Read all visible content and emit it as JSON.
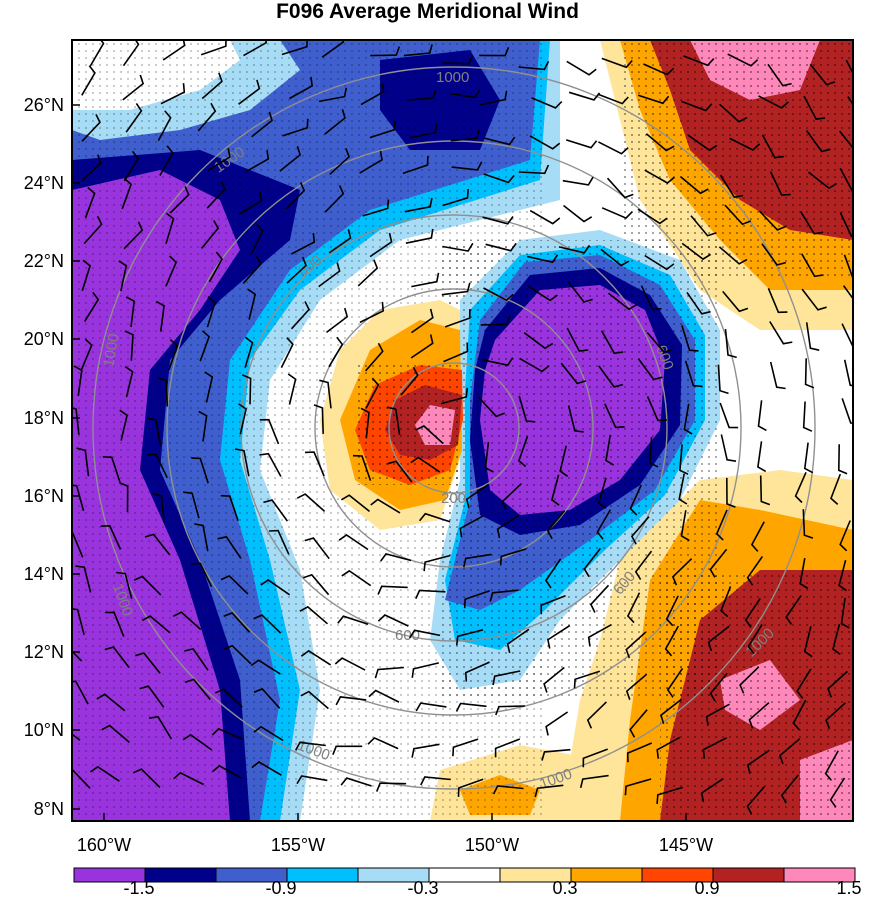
{
  "title": "F096 Average Meridional Wind",
  "lat_labels": [
    "26°N",
    "24°N",
    "22°N",
    "20°N",
    "18°N",
    "16°N",
    "14°N",
    "12°N",
    "10°N",
    "8°N"
  ],
  "lon_labels": [
    "160°W",
    "155°W",
    "150°W",
    "145°W"
  ],
  "colorbar": {
    "labels": [
      "-1.5",
      "-0.9",
      "-0.3",
      "0.3",
      "0.9",
      "1.5"
    ],
    "colors": [
      "#9933dd",
      "#00008b",
      "#3f5fcf",
      "#00bfff",
      "#a6dcf5",
      "#ffffff",
      "#ffe59a",
      "#ffa500",
      "#ff4500",
      "#b22222",
      "#ff88bb"
    ]
  },
  "range_rings": {
    "labels": [
      "200",
      "600",
      "1000"
    ],
    "color": "#808080"
  },
  "legend_ticks": {
    "ring_200": "200",
    "ring_600_a": "600",
    "ring_600_b": "600",
    "ring_600_c": "600",
    "ring_600_d": "600",
    "ring_1000_a": "1000",
    "ring_1000_b": "1000",
    "ring_1000_c": "1000",
    "ring_1000_d": "1000",
    "ring_1000_e": "1000",
    "ring_1000_f": "1000",
    "ring_1000_g": "1000"
  }
}
